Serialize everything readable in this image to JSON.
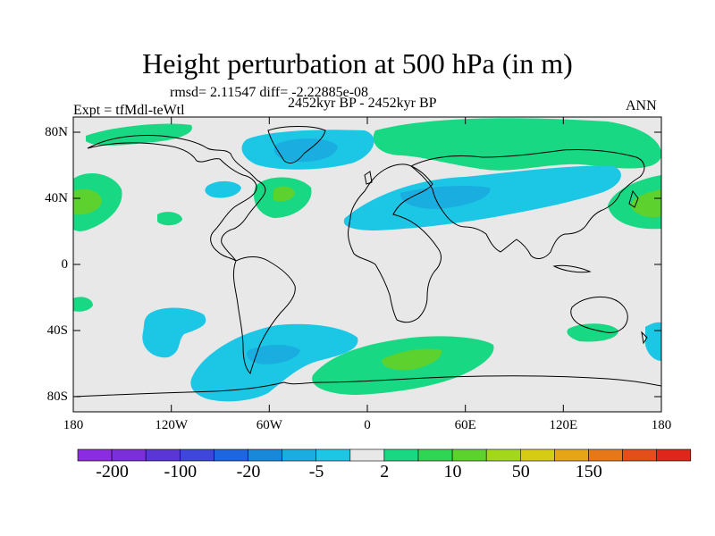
{
  "title": "Height perturbation at 500 hPa (in m)",
  "stats_line": "rmsd= 2.11547  diff= -2.22885e-08",
  "left_label": "Expt = tfMdl-teWtl",
  "center_label": "2452kyr BP - 2452kyr BP",
  "right_label": "ANN",
  "lat_ticks": [
    "80N",
    "40N",
    "0",
    "40S",
    "80S"
  ],
  "lon_ticks": [
    "180",
    "120W",
    "60W",
    "0",
    "60E",
    "120E",
    "180"
  ],
  "colorbar": {
    "colors": [
      "#8b2be2",
      "#7b2fd8",
      "#5a36d4",
      "#3e46dc",
      "#1d66e0",
      "#1a88d8",
      "#1aaee0",
      "#1cc7e6",
      "#e8e8e8",
      "#18d884",
      "#2ed654",
      "#5dd22e",
      "#a3d81a",
      "#d7cc14",
      "#e6a514",
      "#e7781a",
      "#e34e1a",
      "#e0261a"
    ],
    "labels": [
      "-200",
      "-100",
      "-20",
      "-5",
      "2",
      "10",
      "50",
      "150"
    ]
  }
}
